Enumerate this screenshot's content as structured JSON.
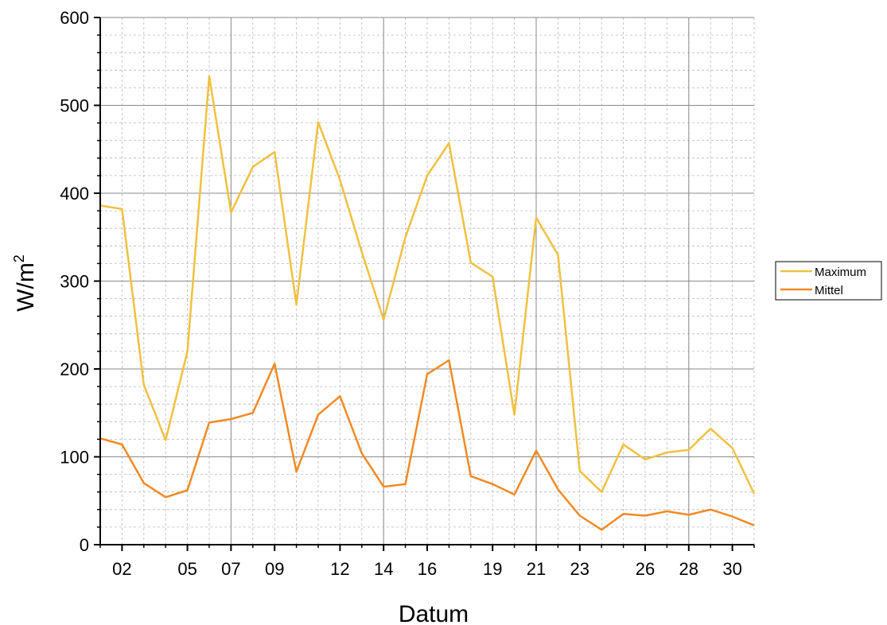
{
  "chart_data": {
    "type": "line",
    "xlabel": "Datum",
    "ylabel": "W/m",
    "ylabel_superscript": "2",
    "x": [
      "01",
      "02",
      "03",
      "04",
      "05",
      "06",
      "07",
      "08",
      "09",
      "10",
      "11",
      "12",
      "13",
      "14",
      "15",
      "16",
      "17",
      "18",
      "19",
      "20",
      "21",
      "22",
      "23",
      "24",
      "25",
      "26",
      "27",
      "28",
      "29",
      "30",
      "31"
    ],
    "x_tick_labels": [
      "02",
      "05",
      "07",
      "09",
      "12",
      "14",
      "16",
      "19",
      "21",
      "23",
      "26",
      "28",
      "30"
    ],
    "xlim": [
      1,
      31
    ],
    "ylim": [
      0,
      600
    ],
    "y_ticks": [
      0,
      100,
      200,
      300,
      400,
      500,
      600
    ],
    "grid": true,
    "legend_position": "right",
    "series": [
      {
        "name": "Maximum",
        "color": "#f0c040",
        "values": [
          386,
          382,
          182,
          119,
          220,
          533,
          378,
          430,
          447,
          273,
          481,
          415,
          333,
          256,
          350,
          420,
          457,
          321,
          305,
          148,
          372,
          330,
          84,
          60,
          114,
          97,
          105,
          108,
          132,
          110,
          58
        ]
      },
      {
        "name": "Mittel",
        "color": "#f08a24",
        "values": [
          121,
          114,
          70,
          54,
          62,
          139,
          143,
          150,
          206,
          83,
          148,
          169,
          104,
          66,
          69,
          194,
          210,
          78,
          69,
          57,
          107,
          63,
          33,
          17,
          35,
          33,
          38,
          34,
          40,
          32,
          22
        ]
      }
    ]
  }
}
